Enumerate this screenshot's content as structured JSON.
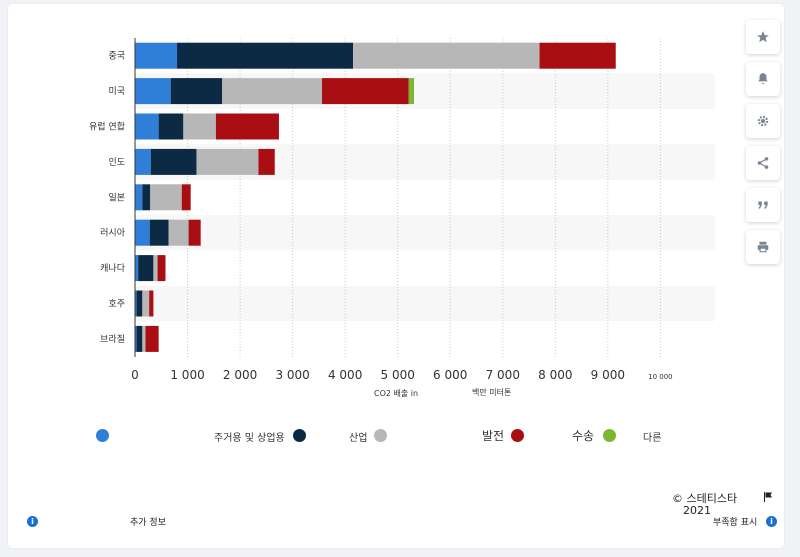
{
  "chart_data": {
    "type": "bar",
    "orientation": "horizontal",
    "stacked": true,
    "categories": [
      "중국",
      "미국",
      "유럽 연합",
      "인도",
      "일본",
      "러시아",
      "캐나다",
      "호주",
      "브라질"
    ],
    "series": [
      {
        "name": "",
        "color": "#2f7ed8",
        "values": [
          800,
          680,
          450,
          300,
          140,
          280,
          60,
          30,
          30
        ]
      },
      {
        "name": "주거용 및 상업용",
        "color": "#0d2a45",
        "values": [
          3350,
          980,
          470,
          870,
          150,
          360,
          290,
          110,
          110
        ]
      },
      {
        "name": "산업",
        "color": "#b7b7b7",
        "values": [
          3550,
          1900,
          620,
          1180,
          600,
          380,
          80,
          130,
          60
        ]
      },
      {
        "name": "발전",
        "color": "#a90e12",
        "values": [
          1450,
          1650,
          1200,
          310,
          170,
          230,
          150,
          80,
          250
        ]
      },
      {
        "name": "수송",
        "color": "#7cb82f",
        "values": [
          0,
          100,
          0,
          0,
          0,
          0,
          0,
          0,
          0
        ]
      }
    ],
    "x_ticks": [
      "0",
      "1 000",
      "2 000",
      "3 000",
      "4 000",
      "5 000",
      "6 000",
      "7 000",
      "8 000",
      "9 000",
      "10 000"
    ],
    "xlim": [
      0,
      11000
    ],
    "xlabel_left": "CO2 배출 in",
    "xlabel_right": "백만 미터톤",
    "grid": true,
    "legend_position": "bottom"
  },
  "legend": {
    "residential_label": "주거용 및 상업용",
    "industry_label": "산업",
    "power_label": "발전",
    "transport_label": "수송",
    "other_label": "다른"
  },
  "footer": {
    "copyright": "© 스테티스타",
    "year": "2021",
    "more_info": "추가 정보",
    "report": "부족함 표시"
  },
  "side_buttons": [
    "star-icon",
    "bell-icon",
    "gear-icon",
    "share-icon",
    "quote-icon",
    "print-icon"
  ]
}
